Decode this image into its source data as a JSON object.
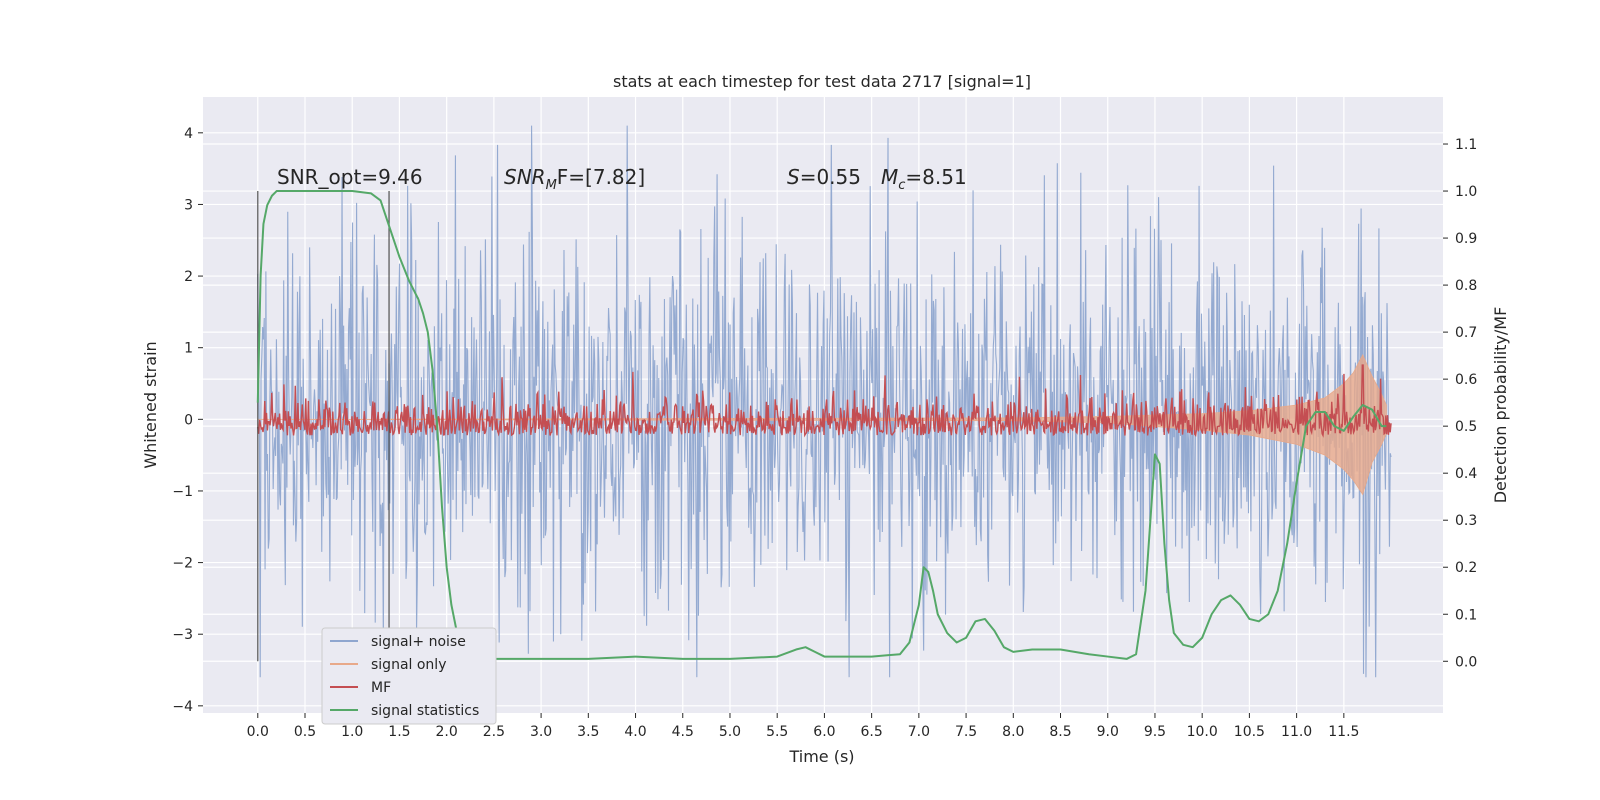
{
  "chart_data": {
    "type": "line",
    "title": "stats at each timestep for test data 2717 [signal=1]",
    "xlabel": "Time (s)",
    "ylabel": "Whitened strain",
    "y2label": "Detection probability/MF",
    "xlim": [
      -0.58,
      12.55
    ],
    "ylim": [
      -4.1,
      4.5
    ],
    "y2lim": [
      -0.11,
      1.2
    ],
    "xticks": [
      0.0,
      0.5,
      1.0,
      1.5,
      2.0,
      2.5,
      3.0,
      3.5,
      4.0,
      4.5,
      5.0,
      5.5,
      6.0,
      6.5,
      7.0,
      7.5,
      8.0,
      8.5,
      9.0,
      9.5,
      10.0,
      10.5,
      11.0,
      11.5
    ],
    "xtick_labels": [
      "0.0",
      "0.5",
      "1.0",
      "1.5",
      "2.0",
      "2.5",
      "3.0",
      "3.5",
      "4.0",
      "4.5",
      "5.0",
      "5.5",
      "6.0",
      "6.5",
      "7.0",
      "7.5",
      "8.0",
      "8.5",
      "9.0",
      "9.5",
      "10.0",
      "10.5",
      "11.0",
      "11.5"
    ],
    "yticks": [
      -4,
      -3,
      -2,
      -1,
      0,
      1,
      2,
      3,
      4
    ],
    "ytick_labels": [
      "−4",
      "−3",
      "−2",
      "−1",
      "0",
      "1",
      "2",
      "3",
      "4"
    ],
    "y2ticks": [
      0.0,
      0.1,
      0.2,
      0.3,
      0.4,
      0.5,
      0.6,
      0.7,
      0.8,
      0.9,
      1.0,
      1.1
    ],
    "y2tick_labels": [
      "0.0",
      "0.1",
      "0.2",
      "0.3",
      "0.4",
      "0.5",
      "0.6",
      "0.7",
      "0.8",
      "0.9",
      "1.0",
      "1.1"
    ],
    "grid": true,
    "legend_placement": "lower-left",
    "annotations": {
      "snr_opt": "SNR_opt=9.46",
      "snr_mf_main": "SNR",
      "snr_mf_sub": "M",
      "snr_mf_rest": "F=[7.82]",
      "s_italic": "S",
      "s_rest": "=0.55",
      "mc_italic": "M",
      "mc_sub": "c",
      "mc_rest": "=8.51"
    },
    "vertical_lines": [
      0.0,
      1.39
    ],
    "series": [
      {
        "name": "signal+ noise",
        "color": "#8fa6cf",
        "axis": "left",
        "x_range": [
          0.0,
          12.0
        ],
        "envelope": {
          "typical_low": -1.6,
          "typical_high": 1.6,
          "peak_low": -3.6,
          "peak_high": 4.1
        }
      },
      {
        "name": "signal only",
        "color": "#e8a98a",
        "axis": "left",
        "x": [
          0.0,
          8.0,
          9.0,
          10.0,
          10.5,
          11.0,
          11.3,
          11.5,
          11.6,
          11.7,
          11.8,
          11.9,
          11.95
        ],
        "upper": [
          0.0,
          0.02,
          0.04,
          0.08,
          0.12,
          0.2,
          0.3,
          0.5,
          0.65,
          0.9,
          0.6,
          0.35,
          0.2
        ],
        "lower": [
          0.0,
          -0.02,
          -0.05,
          -0.15,
          -0.22,
          -0.35,
          -0.5,
          -0.7,
          -0.85,
          -1.05,
          -0.6,
          -0.35,
          -0.2
        ]
      },
      {
        "name": "MF",
        "color": "#c44e52",
        "axis": "right",
        "x_range": [
          0.0,
          12.0
        ],
        "baseline": 0.5,
        "band_low": 0.48,
        "band_high": 0.55,
        "peaks": [
          {
            "x": 11.7,
            "y": 0.63
          }
        ]
      },
      {
        "name": "signal statistics",
        "color": "#55a868",
        "axis": "right",
        "x": [
          0.0,
          0.03,
          0.06,
          0.1,
          0.15,
          0.2,
          0.3,
          0.5,
          1.0,
          1.2,
          1.3,
          1.35,
          1.4,
          1.5,
          1.6,
          1.7,
          1.75,
          1.8,
          1.85,
          1.9,
          1.95,
          2.0,
          2.05,
          2.1,
          2.2,
          2.3,
          2.5,
          3.0,
          3.5,
          4.0,
          4.5,
          5.0,
          5.5,
          5.7,
          5.8,
          5.9,
          6.0,
          6.5,
          6.8,
          6.9,
          7.0,
          7.05,
          7.1,
          7.15,
          7.2,
          7.3,
          7.4,
          7.5,
          7.6,
          7.7,
          7.8,
          7.9,
          8.0,
          8.2,
          8.5,
          8.8,
          9.0,
          9.2,
          9.3,
          9.4,
          9.5,
          9.55,
          9.6,
          9.65,
          9.7,
          9.8,
          9.9,
          10.0,
          10.1,
          10.2,
          10.3,
          10.4,
          10.5,
          10.6,
          10.7,
          10.8,
          10.9,
          11.0,
          11.1,
          11.2,
          11.3,
          11.4,
          11.5,
          11.6,
          11.7,
          11.8,
          11.9,
          11.95
        ],
        "y": [
          0.55,
          0.82,
          0.93,
          0.97,
          0.99,
          1.0,
          1.0,
          1.0,
          1.0,
          0.995,
          0.98,
          0.95,
          0.92,
          0.86,
          0.81,
          0.77,
          0.74,
          0.7,
          0.62,
          0.5,
          0.33,
          0.2,
          0.12,
          0.07,
          0.035,
          0.015,
          0.005,
          0.005,
          0.005,
          0.01,
          0.005,
          0.005,
          0.01,
          0.025,
          0.03,
          0.02,
          0.01,
          0.01,
          0.015,
          0.04,
          0.12,
          0.2,
          0.19,
          0.15,
          0.1,
          0.06,
          0.04,
          0.05,
          0.085,
          0.09,
          0.065,
          0.03,
          0.02,
          0.025,
          0.025,
          0.015,
          0.01,
          0.005,
          0.015,
          0.15,
          0.44,
          0.42,
          0.25,
          0.13,
          0.06,
          0.035,
          0.03,
          0.05,
          0.1,
          0.13,
          0.14,
          0.12,
          0.09,
          0.085,
          0.1,
          0.15,
          0.25,
          0.38,
          0.5,
          0.53,
          0.53,
          0.5,
          0.49,
          0.52,
          0.545,
          0.535,
          0.5,
          0.5
        ]
      }
    ]
  }
}
